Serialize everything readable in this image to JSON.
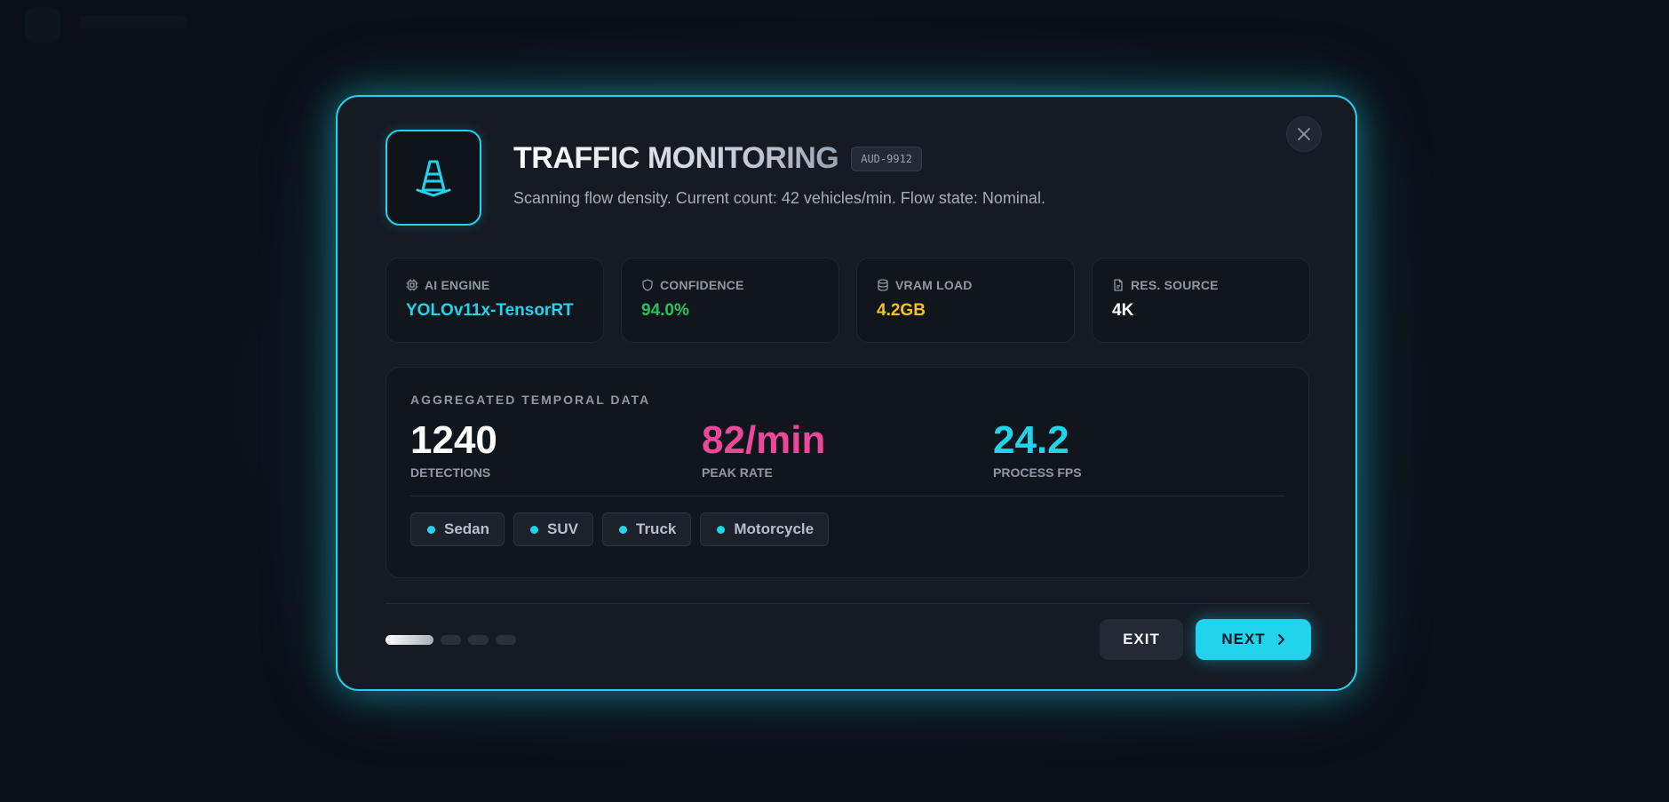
{
  "colors": {
    "accent": "#22d3ee",
    "confidence": "#22c55e",
    "vram": "#fbbf24",
    "peak": "#ec4899",
    "muted": "#8f98a6"
  },
  "modal": {
    "title": "TRAFFIC MONITORING",
    "tag": "AUD-9912",
    "subtitle": "Scanning flow density. Current count: 42 vehicles/min. Flow state: Nominal.",
    "icon": "traffic-cone-icon",
    "close_icon": "close-icon"
  },
  "stats": [
    {
      "icon": "cpu-icon",
      "label": "AI ENGINE",
      "value": "YOLOv11x-TensorRT",
      "color": "#22d3ee"
    },
    {
      "icon": "shield-icon",
      "label": "CONFIDENCE",
      "value": "94.0%",
      "color": "#22c55e"
    },
    {
      "icon": "database-icon",
      "label": "VRAM LOAD",
      "value": "4.2GB",
      "color": "#fbbf24"
    },
    {
      "icon": "file-icon",
      "label": "RES. SOURCE",
      "value": "4K",
      "color": "#ffffff"
    }
  ],
  "temporal": {
    "label": "AGGREGATED TEMPORAL DATA",
    "metrics": [
      {
        "value": "1240",
        "label": "DETECTIONS",
        "color": "#ffffff"
      },
      {
        "value": "82/min",
        "label": "PEAK RATE",
        "color": "#ec4899"
      },
      {
        "value": "24.2",
        "label": "PROCESS FPS",
        "color": "#22d3ee"
      }
    ],
    "chips": [
      "Sedan",
      "SUV",
      "Truck",
      "Motorcycle"
    ]
  },
  "pagination": {
    "current": 1,
    "total": 4
  },
  "buttons": {
    "exit": "EXIT",
    "next": "NEXT"
  }
}
